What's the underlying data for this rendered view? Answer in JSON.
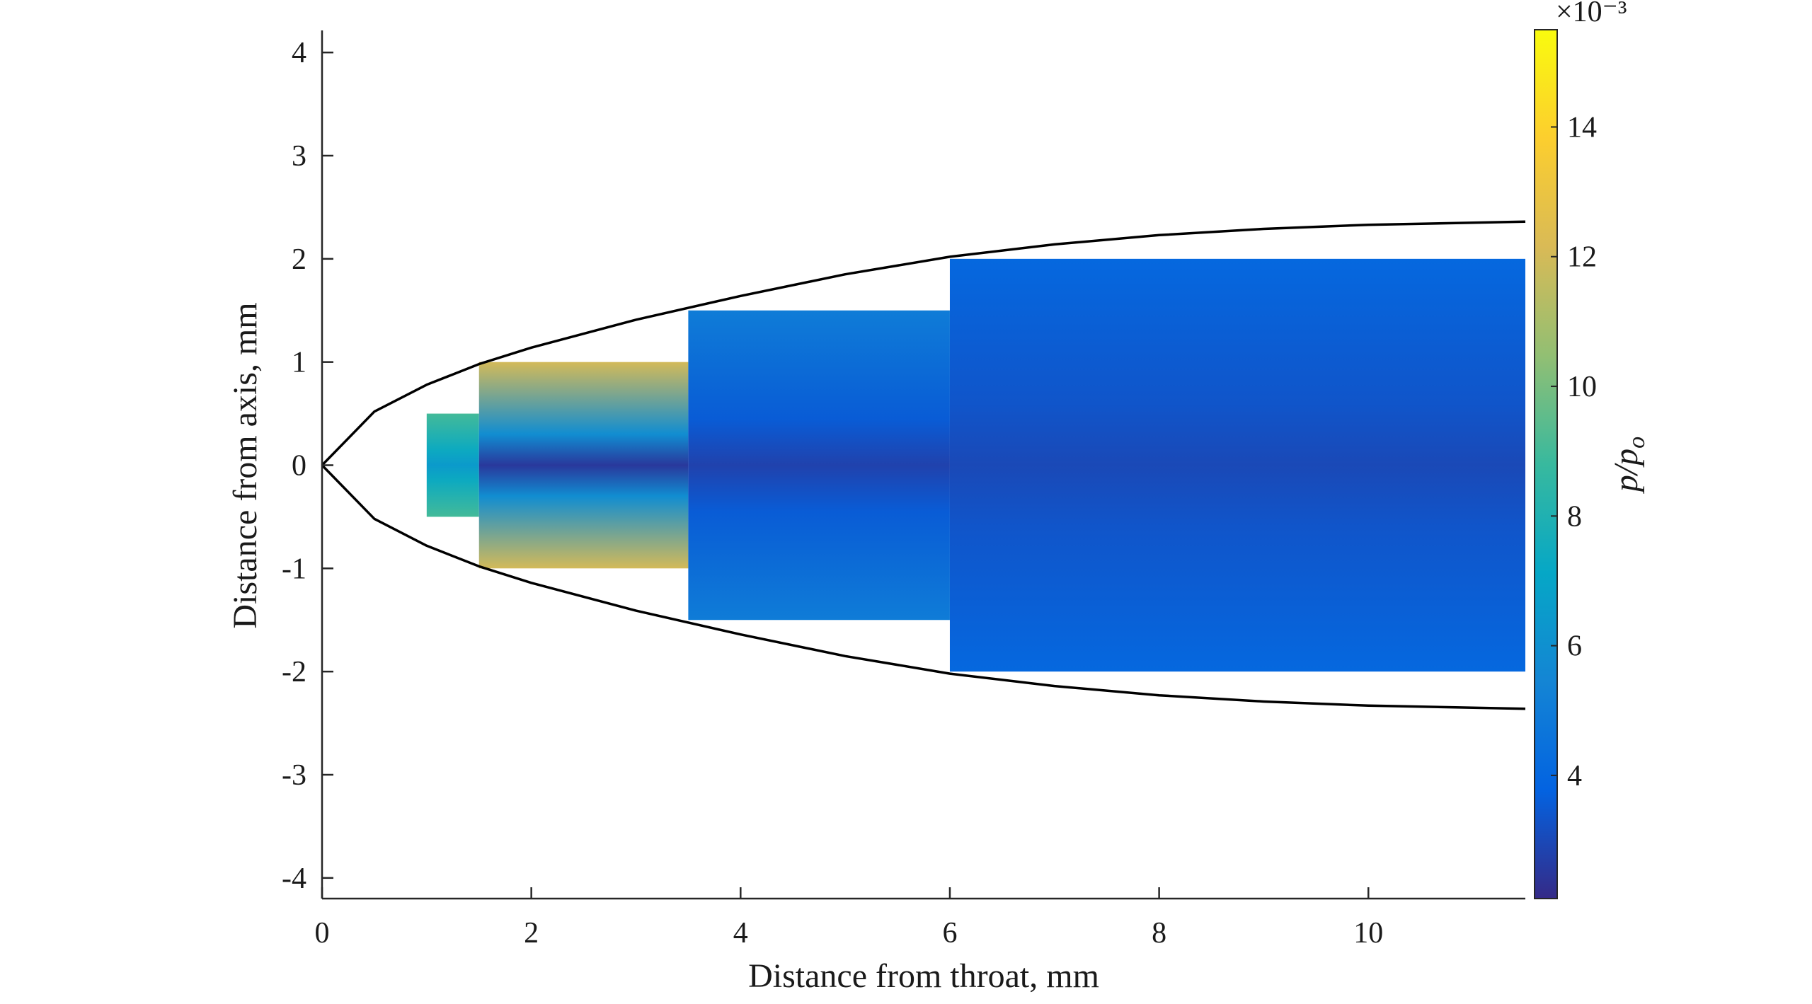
{
  "chart_data": {
    "type": "heatmap",
    "title": "",
    "xlabel": "Distance from throat, mm",
    "ylabel": "Distance from axis, mm",
    "xlim": [
      0,
      11.5
    ],
    "ylim": [
      -4.2,
      4.2
    ],
    "x_ticks": [
      "0",
      "2",
      "4",
      "6",
      "8",
      "10"
    ],
    "y_ticks": [
      "4",
      "3",
      "2",
      "1",
      "0",
      "-1",
      "-2",
      "-3",
      "-4"
    ],
    "grid": false,
    "nozzle_wall": {
      "shape": "parabolic",
      "x": [
        0,
        0.5,
        1,
        1.5,
        2,
        3,
        4,
        5,
        6,
        7,
        8,
        9,
        10,
        11,
        11.5
      ],
      "y_upper": [
        0,
        0.52,
        0.78,
        0.98,
        1.14,
        1.41,
        1.64,
        1.85,
        2.02,
        2.14,
        2.23,
        2.29,
        2.33,
        2.35,
        2.36
      ],
      "y_lower": [
        0,
        -0.52,
        -0.78,
        -0.98,
        -1.14,
        -1.41,
        -1.64,
        -1.85,
        -2.02,
        -2.14,
        -2.23,
        -2.29,
        -2.33,
        -2.35,
        -2.36
      ]
    },
    "field_blocks": [
      {
        "x_start": 1.0,
        "x_end": 1.5,
        "half_height": 0.5,
        "edge_value": 9.0,
        "axis_value": 6.5
      },
      {
        "x_start": 1.5,
        "x_end": 3.5,
        "half_height": 1.0,
        "edge_value": 12.0,
        "axis_value": 2.5
      },
      {
        "x_start": 3.5,
        "x_end": 6.0,
        "half_height": 1.5,
        "edge_value": 5.0,
        "axis_value": 2.8
      },
      {
        "x_start": 6.0,
        "x_end": 11.5,
        "half_height": 2.0,
        "edge_value": 4.0,
        "axis_value": 3.0
      }
    ],
    "colorbar": {
      "label": "p/p",
      "label_subscript": "o",
      "exponent_label": "×10⁻³",
      "min": 2.1,
      "max": 15.5,
      "ticks": [
        "4",
        "6",
        "8",
        "10",
        "12",
        "14"
      ],
      "colormap": "parula",
      "colors": [
        "#352a87",
        "#0363e1",
        "#1485d4",
        "#06a7c6",
        "#38b99e",
        "#92bf73",
        "#d9ba56",
        "#fcce2e",
        "#f9fb0e"
      ]
    }
  }
}
